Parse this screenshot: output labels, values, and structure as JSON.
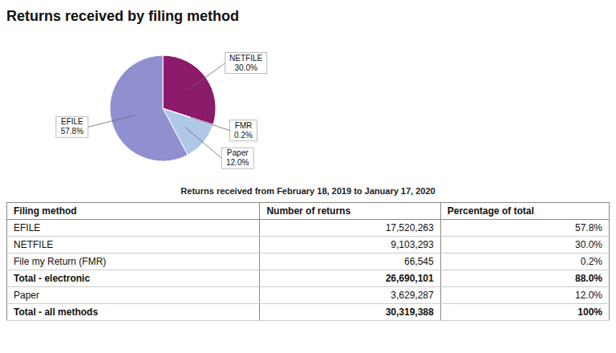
{
  "chart_data": {
    "type": "pie",
    "title": "Returns received by filing method",
    "subtitle": "Returns received from February 18, 2019 to January 17, 2020",
    "categories": [
      "NETFILE",
      "FMR",
      "Paper",
      "EFILE"
    ],
    "values": [
      30.0,
      0.2,
      12.0,
      57.8
    ],
    "value_labels": [
      "30.0%",
      "0.2%",
      "12.0%",
      "57.8%"
    ],
    "colors": [
      "#8B1A6B",
      "#ADD8E6",
      "#B0C8E8",
      "#9090D0"
    ],
    "data_labels": true,
    "table": {
      "headers": [
        "Filing method",
        "Number of returns",
        "Percentage of total"
      ],
      "rows": [
        [
          "EFILE",
          "17,520,263",
          "57.8%"
        ],
        [
          "NETFILE",
          "9,103,293",
          "30.0%"
        ],
        [
          "File my Return (FMR)",
          "66,545",
          "0.2%"
        ],
        [
          "Total - electronic",
          "26,690,101",
          "88.0%"
        ],
        [
          "Paper",
          "3,629,287",
          "12.0%"
        ],
        [
          "Total - all methods",
          "30,319,388",
          "100%"
        ]
      ],
      "bold": [
        false,
        false,
        false,
        true,
        false,
        true
      ]
    }
  }
}
